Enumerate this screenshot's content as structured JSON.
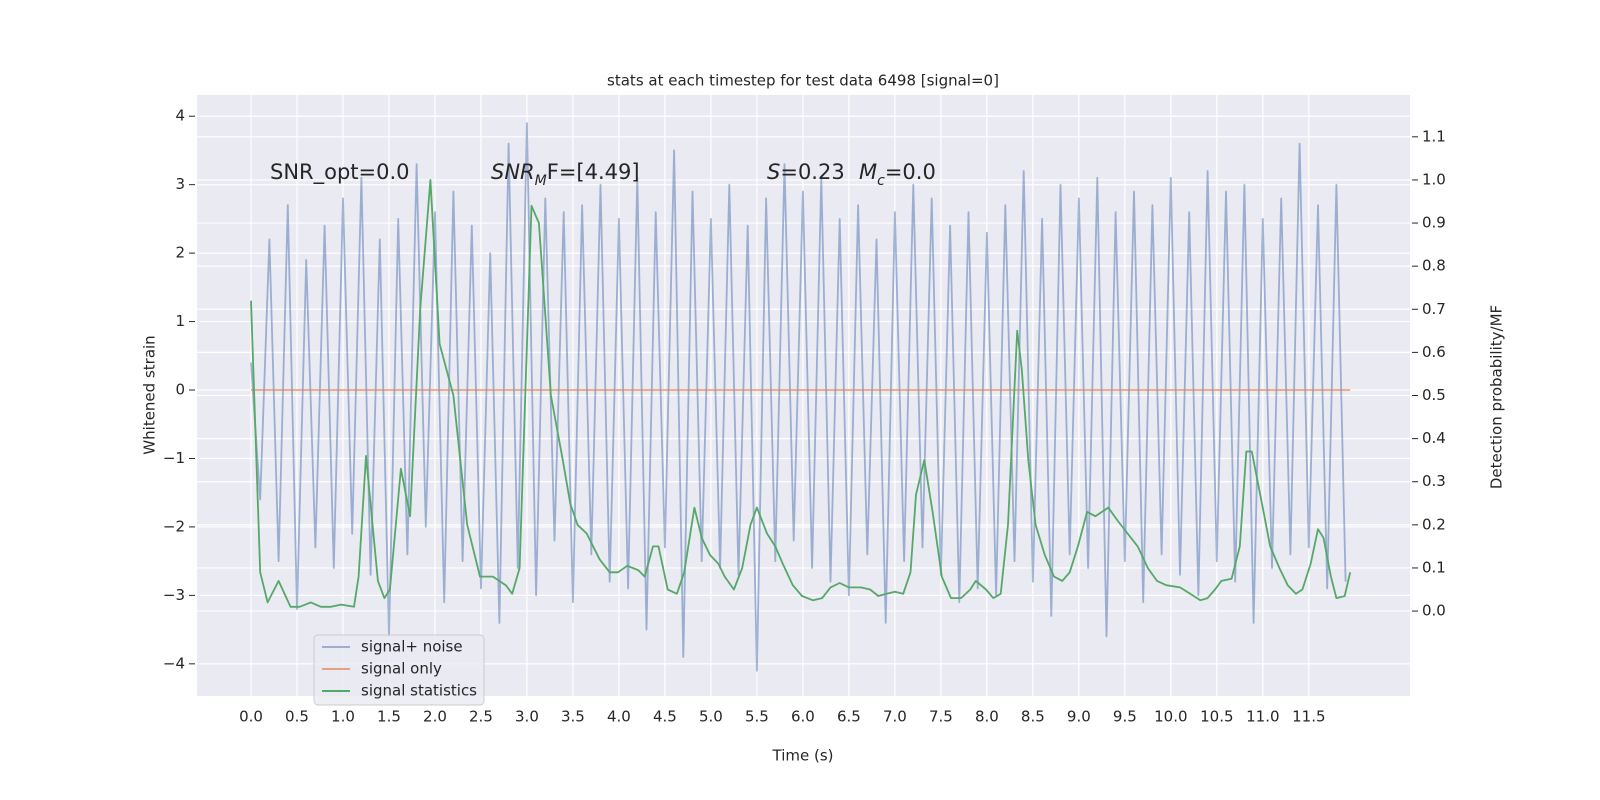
{
  "chart_data": {
    "type": "line",
    "title": "stats at each timestep for test data 6498 [signal=0]",
    "xlabel": "Time (s)",
    "ylabel": "Whitened strain",
    "y2label": "Detection probability/MF",
    "xlim": [
      -0.587,
      12.6
    ],
    "ylim": [
      -4.47,
      4.31
    ],
    "y2lim": [
      -0.197,
      1.197
    ],
    "xticks": [
      {
        "value": 0,
        "label": "0.0"
      },
      {
        "value": 0.5,
        "label": "0.5"
      },
      {
        "value": 1,
        "label": "1.0"
      },
      {
        "value": 1.5,
        "label": "1.5"
      },
      {
        "value": 2,
        "label": "2.0"
      },
      {
        "value": 2.5,
        "label": "2.5"
      },
      {
        "value": 3,
        "label": "3.0"
      },
      {
        "value": 3.5,
        "label": "3.5"
      },
      {
        "value": 4,
        "label": "4.0"
      },
      {
        "value": 4.5,
        "label": "4.5"
      },
      {
        "value": 5,
        "label": "5.0"
      },
      {
        "value": 5.5,
        "label": "5.5"
      },
      {
        "value": 6,
        "label": "6.0"
      },
      {
        "value": 6.5,
        "label": "6.5"
      },
      {
        "value": 7,
        "label": "7.0"
      },
      {
        "value": 7.5,
        "label": "7.5"
      },
      {
        "value": 8,
        "label": "8.0"
      },
      {
        "value": 8.5,
        "label": "8.5"
      },
      {
        "value": 9,
        "label": "9.0"
      },
      {
        "value": 9.5,
        "label": "9.5"
      },
      {
        "value": 10,
        "label": "10.0"
      },
      {
        "value": 10.5,
        "label": "10.5"
      },
      {
        "value": 11,
        "label": "11.0"
      },
      {
        "value": 11.5,
        "label": "11.5"
      }
    ],
    "yticks": [
      {
        "value": -4,
        "label": "−4"
      },
      {
        "value": -3,
        "label": "−3"
      },
      {
        "value": -2,
        "label": "−2"
      },
      {
        "value": -1,
        "label": "−1"
      },
      0,
      1,
      2,
      3,
      4
    ],
    "y2ticks": [
      {
        "value": 0,
        "label": "0.0"
      },
      {
        "value": 0.1,
        "label": "0.1"
      },
      {
        "value": 0.2,
        "label": "0.2"
      },
      {
        "value": 0.3,
        "label": "0.3"
      },
      {
        "value": 0.4,
        "label": "0.4"
      },
      {
        "value": 0.5,
        "label": "0.5"
      },
      {
        "value": 0.6,
        "label": "0.6"
      },
      {
        "value": 0.7,
        "label": "0.7"
      },
      {
        "value": 0.8,
        "label": "0.8"
      },
      {
        "value": 0.9,
        "label": "0.9"
      },
      {
        "value": 1,
        "label": "1.0"
      },
      {
        "value": 1.1,
        "label": "1.1"
      }
    ],
    "grid": true,
    "legend": "lower left",
    "annotations": [
      {
        "segments": [
          {
            "text": "SNR_opt=0.0"
          }
        ]
      },
      {
        "segments": [
          {
            "text": "SNR",
            "style": "italic"
          },
          {
            "text": "M",
            "style": "italic",
            "sub": true
          },
          {
            "text": "F=[4.49]"
          }
        ]
      },
      {
        "segments": [
          {
            "text": "S",
            "style": "italic"
          },
          {
            "text": "=0.23"
          }
        ]
      },
      {
        "segments": [
          {
            "text": "M",
            "style": "italic"
          },
          {
            "text": "c",
            "style": "italic",
            "sub": true
          },
          {
            "text": "=0.0"
          }
        ]
      }
    ],
    "series": [
      {
        "name": "signal+ noise",
        "color": "#4c72b0",
        "opacity": 0.5,
        "x": [
          0,
          0.1,
          0.2,
          0.3,
          0.4,
          0.5,
          0.6,
          0.7,
          0.8,
          0.9,
          1,
          1.1,
          1.2,
          1.3,
          1.4,
          1.5,
          1.6,
          1.7,
          1.8,
          1.9,
          2,
          2.1,
          2.2,
          2.3,
          2.4,
          2.5,
          2.6,
          2.7,
          2.8,
          2.9,
          3,
          3.1,
          3.2,
          3.3,
          3.4,
          3.5,
          3.6,
          3.7,
          3.8,
          3.9,
          4,
          4.1,
          4.2,
          4.3,
          4.4,
          4.5,
          4.6,
          4.7,
          4.8,
          4.9,
          5,
          5.1,
          5.2,
          5.3,
          5.4,
          5.5,
          5.6,
          5.7,
          5.8,
          5.9,
          6,
          6.1,
          6.2,
          6.3,
          6.4,
          6.5,
          6.6,
          6.7,
          6.8,
          6.9,
          7,
          7.1,
          7.2,
          7.3,
          7.4,
          7.5,
          7.6,
          7.7,
          7.8,
          7.9,
          8,
          8.1,
          8.2,
          8.3,
          8.4,
          8.5,
          8.6,
          8.7,
          8.8,
          8.9,
          9,
          9.1,
          9.2,
          9.3,
          9.4,
          9.5,
          9.6,
          9.7,
          9.8,
          9.9,
          10,
          10.1,
          10.2,
          10.3,
          10.4,
          10.5,
          10.6,
          10.7,
          10.8,
          10.9,
          11,
          11.1,
          11.2,
          11.3,
          11.4,
          11.5,
          11.6,
          11.7,
          11.8,
          11.9
        ],
        "values": [
          0.4,
          -1.6,
          2.2,
          -2.5,
          2.7,
          -3.2,
          1.9,
          -2.3,
          2.4,
          -2.6,
          2.8,
          -2.1,
          3.1,
          -2.7,
          2.2,
          -3.6,
          2.5,
          -2.4,
          3.3,
          -2.0,
          2.6,
          -3.1,
          2.9,
          -2.5,
          2.4,
          -2.9,
          2.0,
          -3.4,
          3.6,
          -2.6,
          3.9,
          -3.0,
          2.8,
          -2.2,
          2.6,
          -3.1,
          2.7,
          -2.4,
          3.0,
          -2.8,
          2.5,
          -2.9,
          3.1,
          -3.5,
          2.6,
          -2.3,
          3.5,
          -3.9,
          2.9,
          -2.5,
          2.5,
          -2.6,
          3.0,
          -2.7,
          2.4,
          -4.1,
          2.8,
          -2.5,
          3.3,
          -2.2,
          2.9,
          -2.6,
          3.1,
          -2.8,
          2.5,
          -3.0,
          2.7,
          -2.4,
          2.2,
          -3.4,
          2.6,
          -2.5,
          3.0,
          -2.3,
          2.8,
          -2.7,
          2.4,
          -3.1,
          2.6,
          -2.9,
          2.3,
          -3.0,
          2.7,
          -2.5,
          3.2,
          -2.8,
          2.5,
          -3.3,
          3.0,
          -2.4,
          2.8,
          -2.6,
          3.1,
          -3.6,
          2.6,
          -2.5,
          2.9,
          -3.1,
          2.7,
          -2.4,
          3.1,
          -2.7,
          2.6,
          -3.0,
          3.2,
          -2.5,
          2.9,
          -2.8,
          3.0,
          -3.4,
          2.5,
          -2.6,
          2.8,
          -2.4,
          3.6,
          -2.3,
          2.7,
          -2.9,
          3.0,
          -2.8
        ]
      },
      {
        "name": "signal only",
        "color": "#dd8452",
        "opacity": 0.7,
        "x": [
          0,
          11.95
        ],
        "values": [
          0,
          0
        ]
      },
      {
        "name": "signal statistics",
        "color": "#55a868",
        "axis": "y2",
        "x": [
          0,
          0.1,
          0.18,
          0.3,
          0.43,
          0.53,
          0.65,
          0.76,
          0.87,
          0.98,
          1.12,
          1.17,
          1.25,
          1.38,
          1.45,
          1.51,
          1.63,
          1.73,
          1.84,
          1.95,
          2.05,
          2.2,
          2.35,
          2.49,
          2.63,
          2.77,
          2.84,
          2.92,
          3.05,
          3.13,
          3.26,
          3.39,
          3.47,
          3.55,
          3.65,
          3.79,
          3.9,
          3.99,
          4.09,
          4.21,
          4.28,
          4.37,
          4.43,
          4.53,
          4.63,
          4.71,
          4.82,
          4.9,
          4.99,
          5.08,
          5.15,
          5.25,
          5.34,
          5.43,
          5.5,
          5.61,
          5.7,
          5.78,
          5.89,
          5.99,
          6.11,
          6.21,
          6.3,
          6.4,
          6.5,
          6.63,
          6.73,
          6.82,
          6.91,
          7,
          7.09,
          7.17,
          7.23,
          7.32,
          7.41,
          7.51,
          7.61,
          7.72,
          7.82,
          7.88,
          7.99,
          8.07,
          8.15,
          8.23,
          8.33,
          8.38,
          8.45,
          8.53,
          8.63,
          8.73,
          8.82,
          8.9,
          8.99,
          9.09,
          9.18,
          9.32,
          9.42,
          9.53,
          9.64,
          9.75,
          9.85,
          9.95,
          10.1,
          10.21,
          10.32,
          10.4,
          10.48,
          10.55,
          10.66,
          10.75,
          10.82,
          10.88,
          10.99,
          11.08,
          11.18,
          11.27,
          11.36,
          11.43,
          11.52,
          11.6,
          11.66,
          11.74,
          11.8,
          11.89,
          11.95
        ],
        "values": [
          0.72,
          0.09,
          0.02,
          0.07,
          0.01,
          0.01,
          0.02,
          0.01,
          0.01,
          0.015,
          0.01,
          0.08,
          0.36,
          0.07,
          0.03,
          0.05,
          0.33,
          0.22,
          0.7,
          1.0,
          0.62,
          0.5,
          0.2,
          0.08,
          0.08,
          0.06,
          0.04,
          0.1,
          0.94,
          0.9,
          0.5,
          0.35,
          0.25,
          0.2,
          0.18,
          0.12,
          0.09,
          0.09,
          0.105,
          0.095,
          0.08,
          0.15,
          0.15,
          0.05,
          0.04,
          0.09,
          0.24,
          0.17,
          0.13,
          0.11,
          0.08,
          0.05,
          0.1,
          0.2,
          0.24,
          0.18,
          0.15,
          0.11,
          0.06,
          0.035,
          0.025,
          0.03,
          0.055,
          0.065,
          0.055,
          0.055,
          0.05,
          0.035,
          0.04,
          0.045,
          0.04,
          0.09,
          0.27,
          0.35,
          0.23,
          0.08,
          0.03,
          0.03,
          0.05,
          0.07,
          0.05,
          0.03,
          0.04,
          0.2,
          0.65,
          0.56,
          0.35,
          0.2,
          0.13,
          0.08,
          0.07,
          0.09,
          0.15,
          0.23,
          0.22,
          0.24,
          0.21,
          0.18,
          0.15,
          0.1,
          0.07,
          0.06,
          0.055,
          0.04,
          0.025,
          0.03,
          0.05,
          0.07,
          0.075,
          0.15,
          0.37,
          0.37,
          0.25,
          0.15,
          0.1,
          0.06,
          0.04,
          0.05,
          0.11,
          0.19,
          0.17,
          0.08,
          0.03,
          0.035,
          0.09
        ]
      }
    ]
  }
}
